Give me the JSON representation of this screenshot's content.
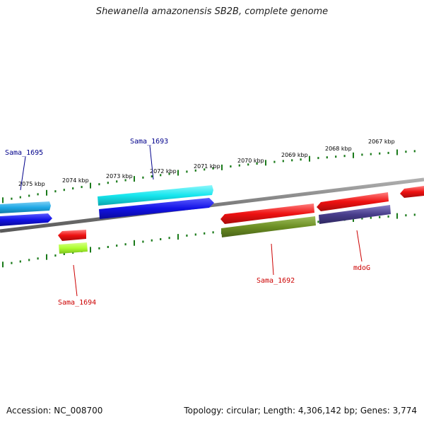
{
  "title": "Shewanella amazonensis SB2B, complete genome",
  "footer": {
    "accession": "Accession: NC_008700",
    "info": "Topology: circular; Length: 4,306,142 bp; Genes: 3,774"
  },
  "colors": {
    "backbone": "#808080",
    "tick": "#1a7a1a",
    "label_forward": "#00008b",
    "label_reverse": "#cc0000",
    "cyan": "#17e6ee",
    "sky": "#1fa9e6",
    "blue": "#1212e6",
    "red": "#ee1111",
    "olive": "#6b8e23",
    "lime": "#adff2f",
    "slate": "#483d8b"
  },
  "tick_labels": [
    "2075 kbp",
    "2074 kbp",
    "2073 kbp",
    "2072 kbp",
    "2071 kbp",
    "2070 kbp",
    "2069 kbp",
    "2068 kbp",
    "2067 kbp"
  ],
  "genes": [
    {
      "name": "Sama_1695",
      "strand": "forward",
      "color": "sky"
    },
    {
      "name": "Sama_1693",
      "strand": "forward",
      "color": "cyan"
    },
    {
      "name": "Sama_1694",
      "strand": "reverse",
      "color": "lime"
    },
    {
      "name": "Sama_1692",
      "strand": "reverse",
      "color": "olive"
    },
    {
      "name": "mdoG",
      "strand": "reverse",
      "color": "slate"
    }
  ]
}
